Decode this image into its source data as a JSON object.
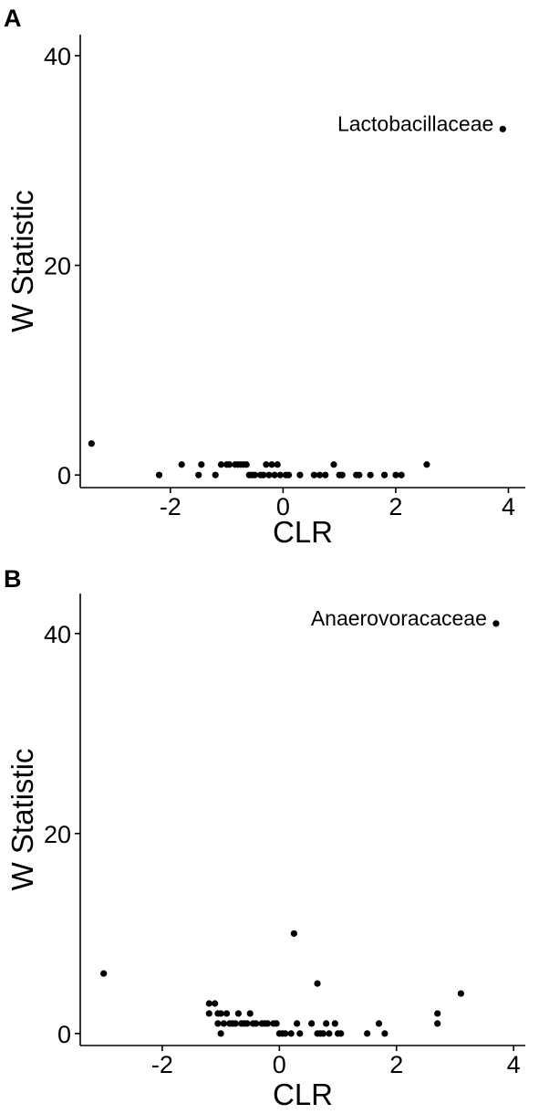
{
  "chart_data": [
    {
      "type": "scatter",
      "panel_label": "A",
      "xlabel": "CLR",
      "ylabel": "W Statistic",
      "xlim": [
        -3.6,
        4.3
      ],
      "ylim": [
        -1.2,
        42
      ],
      "xticks": [
        "-2",
        "0",
        "2",
        "4"
      ],
      "yticks": [
        "0",
        "20",
        "40"
      ],
      "grid": false,
      "points": [
        {
          "x": -3.4,
          "y": 3
        },
        {
          "x": -2.2,
          "y": 0
        },
        {
          "x": -1.8,
          "y": 1
        },
        {
          "x": -1.5,
          "y": 0
        },
        {
          "x": -1.45,
          "y": 1
        },
        {
          "x": -1.2,
          "y": 0
        },
        {
          "x": -1.1,
          "y": 1
        },
        {
          "x": -1.0,
          "y": 1
        },
        {
          "x": -0.95,
          "y": 1
        },
        {
          "x": -0.85,
          "y": 1
        },
        {
          "x": -0.8,
          "y": 1
        },
        {
          "x": -0.75,
          "y": 1
        },
        {
          "x": -0.7,
          "y": 1
        },
        {
          "x": -0.65,
          "y": 1
        },
        {
          "x": -0.6,
          "y": 0
        },
        {
          "x": -0.55,
          "y": 0
        },
        {
          "x": -0.5,
          "y": 0
        },
        {
          "x": -0.4,
          "y": 0
        },
        {
          "x": -0.35,
          "y": 0
        },
        {
          "x": -0.3,
          "y": 1
        },
        {
          "x": -0.25,
          "y": 0
        },
        {
          "x": -0.2,
          "y": 1
        },
        {
          "x": -0.15,
          "y": 0
        },
        {
          "x": -0.1,
          "y": 1
        },
        {
          "x": -0.05,
          "y": 0
        },
        {
          "x": 0.05,
          "y": 0
        },
        {
          "x": 0.1,
          "y": 0
        },
        {
          "x": 0.3,
          "y": 0
        },
        {
          "x": 0.55,
          "y": 0
        },
        {
          "x": 0.65,
          "y": 0
        },
        {
          "x": 0.75,
          "y": 0
        },
        {
          "x": 0.9,
          "y": 1
        },
        {
          "x": 1.0,
          "y": 0
        },
        {
          "x": 1.05,
          "y": 0
        },
        {
          "x": 1.3,
          "y": 0
        },
        {
          "x": 1.35,
          "y": 0
        },
        {
          "x": 1.55,
          "y": 0
        },
        {
          "x": 1.8,
          "y": 0
        },
        {
          "x": 2.0,
          "y": 0
        },
        {
          "x": 2.1,
          "y": 0
        },
        {
          "x": 2.55,
          "y": 1
        },
        {
          "x": 3.9,
          "y": 33
        }
      ],
      "annotations": [
        {
          "label": "Lactobacillaceae",
          "x": 3.9,
          "y": 33
        }
      ]
    },
    {
      "type": "scatter",
      "panel_label": "B",
      "xlabel": "CLR",
      "ylabel": "W Statistic",
      "xlim": [
        -3.4,
        4.2
      ],
      "ylim": [
        -1.2,
        44
      ],
      "xticks": [
        "-2",
        "0",
        "2",
        "4"
      ],
      "yticks": [
        "0",
        "20",
        "40"
      ],
      "grid": false,
      "points": [
        {
          "x": -3.0,
          "y": 6
        },
        {
          "x": -1.2,
          "y": 3
        },
        {
          "x": -1.2,
          "y": 2
        },
        {
          "x": -1.1,
          "y": 3
        },
        {
          "x": -1.05,
          "y": 2
        },
        {
          "x": -1.05,
          "y": 1
        },
        {
          "x": -1.0,
          "y": 0
        },
        {
          "x": -1.0,
          "y": 2
        },
        {
          "x": -0.95,
          "y": 1
        },
        {
          "x": -0.9,
          "y": 2
        },
        {
          "x": -0.85,
          "y": 1
        },
        {
          "x": -0.8,
          "y": 1
        },
        {
          "x": -0.75,
          "y": 1
        },
        {
          "x": -0.7,
          "y": 2
        },
        {
          "x": -0.65,
          "y": 1
        },
        {
          "x": -0.6,
          "y": 1
        },
        {
          "x": -0.55,
          "y": 1
        },
        {
          "x": -0.5,
          "y": 2
        },
        {
          "x": -0.45,
          "y": 1
        },
        {
          "x": -0.4,
          "y": 1
        },
        {
          "x": -0.3,
          "y": 1
        },
        {
          "x": -0.25,
          "y": 1
        },
        {
          "x": -0.2,
          "y": 1
        },
        {
          "x": -0.1,
          "y": 1
        },
        {
          "x": -0.05,
          "y": 1
        },
        {
          "x": 0.0,
          "y": 0
        },
        {
          "x": 0.05,
          "y": 0
        },
        {
          "x": 0.1,
          "y": 0
        },
        {
          "x": 0.2,
          "y": 0
        },
        {
          "x": 0.25,
          "y": 10
        },
        {
          "x": 0.3,
          "y": 1
        },
        {
          "x": 0.35,
          "y": 0
        },
        {
          "x": 0.55,
          "y": 1
        },
        {
          "x": 0.65,
          "y": 5
        },
        {
          "x": 0.65,
          "y": 0
        },
        {
          "x": 0.7,
          "y": 0
        },
        {
          "x": 0.75,
          "y": 0
        },
        {
          "x": 0.8,
          "y": 1
        },
        {
          "x": 0.85,
          "y": 0
        },
        {
          "x": 0.95,
          "y": 1
        },
        {
          "x": 1.0,
          "y": 0
        },
        {
          "x": 1.05,
          "y": 0
        },
        {
          "x": 1.5,
          "y": 0
        },
        {
          "x": 1.7,
          "y": 1
        },
        {
          "x": 1.8,
          "y": 0
        },
        {
          "x": 2.7,
          "y": 1
        },
        {
          "x": 2.7,
          "y": 2
        },
        {
          "x": 3.1,
          "y": 4
        },
        {
          "x": 3.7,
          "y": 41
        }
      ],
      "annotations": [
        {
          "label": "Anaerovoracaceae",
          "x": 3.7,
          "y": 41
        }
      ]
    }
  ]
}
